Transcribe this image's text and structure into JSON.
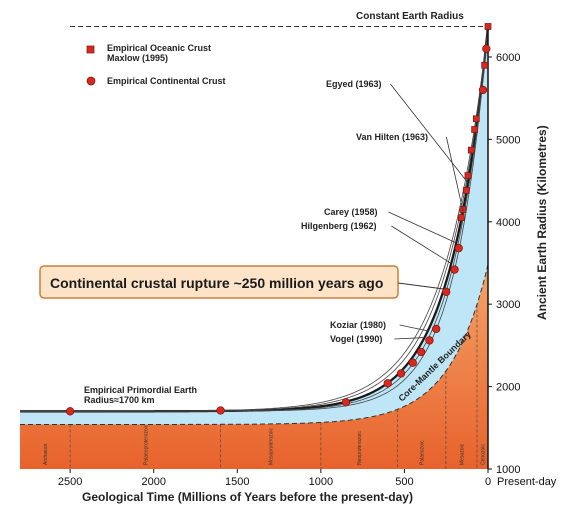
{
  "chart_data": {
    "type": "line",
    "xlabel": "Geological Time (Millions of Years before the present-day)",
    "ylabel": "Ancient Earth Radius (Kilometres)",
    "x_ticks": [
      "2500",
      "2000",
      "1500",
      "1000",
      "500",
      "0"
    ],
    "x_present_label": "Present-day",
    "y_ticks": [
      "1000",
      "2000",
      "3000",
      "4000",
      "5000",
      "6000"
    ],
    "xlim": [
      2800,
      0
    ],
    "ylim": [
      1000,
      6400
    ],
    "constant_radius_label": "Constant Earth Radius",
    "legend": {
      "oceanic": "Empirical Oceanic Crust\nMaxlow (1995)",
      "continental": "Empirical Continental Crust"
    },
    "primordial_label": "Empirical Primordial Earth\nRadius≈1700 km",
    "core_mantle_label": "Core-Mantle Boundary",
    "callout": "Continental crustal rupture ~250 million years ago",
    "authors": [
      {
        "text": "Egyed (1963)",
        "curve_age": 120
      },
      {
        "text": "Van Hilten (1963)",
        "curve_age": 150
      },
      {
        "text": "Carey (1958)",
        "curve_age": 190
      },
      {
        "text": "Hilgenberg (1962)",
        "curve_age": 220
      },
      {
        "text": "Koziar (1980)",
        "curve_age": 360
      },
      {
        "text": "Vogel (1990)",
        "curve_age": 380
      }
    ],
    "eras": [
      {
        "name": "Archaean",
        "start": 2800,
        "end": 2500
      },
      {
        "name": "Palaeoproterozoic",
        "start": 2500,
        "end": 1600
      },
      {
        "name": "Mesoproterozoic",
        "start": 1600,
        "end": 1000
      },
      {
        "name": "Neoproterozoic",
        "start": 1000,
        "end": 541
      },
      {
        "name": "Palaeozoic",
        "start": 541,
        "end": 252
      },
      {
        "name": "Mesozoic",
        "start": 252,
        "end": 66
      },
      {
        "name": "Cenozoic",
        "start": 66,
        "end": 0
      }
    ],
    "continental_points": [
      {
        "x": 2500,
        "y": 1700
      },
      {
        "x": 1600,
        "y": 1710
      },
      {
        "x": 850,
        "y": 1810
      },
      {
        "x": 600,
        "y": 2040
      },
      {
        "x": 520,
        "y": 2160
      },
      {
        "x": 450,
        "y": 2290
      },
      {
        "x": 400,
        "y": 2420
      },
      {
        "x": 350,
        "y": 2560
      },
      {
        "x": 310,
        "y": 2700
      },
      {
        "x": 250,
        "y": 3150
      },
      {
        "x": 200,
        "y": 3420
      },
      {
        "x": 175,
        "y": 3680
      },
      {
        "x": 30,
        "y": 5600
      },
      {
        "x": 10,
        "y": 6100
      }
    ],
    "oceanic_points": [
      {
        "x": 160,
        "y": 4050
      },
      {
        "x": 150,
        "y": 4150
      },
      {
        "x": 130,
        "y": 4380
      },
      {
        "x": 120,
        "y": 4560
      },
      {
        "x": 100,
        "y": 4870
      },
      {
        "x": 80,
        "y": 5120
      },
      {
        "x": 70,
        "y": 5250
      },
      {
        "x": 20,
        "y": 5900
      },
      {
        "x": 0,
        "y": 6370
      }
    ],
    "constant_radius": 6370,
    "primordial_radius": 1700
  }
}
